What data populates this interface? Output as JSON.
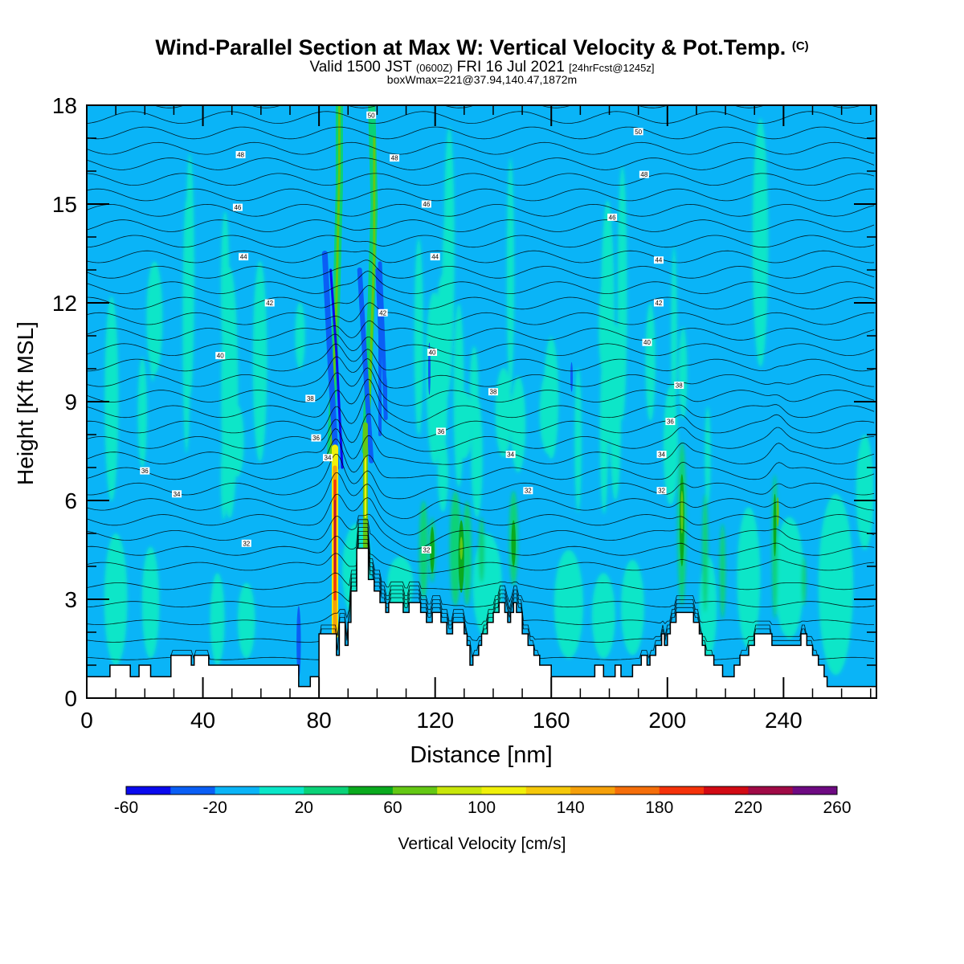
{
  "header": {
    "title": "Wind-Parallel Section at Max W: Vertical Velocity & Pot.Temp.",
    "copyright": "(C)",
    "valid_prefix": "Valid 1500 JST",
    "valid_utc": "(0600Z)",
    "valid_date": "FRI 16 Jul 2021",
    "forecast": "[24hrFcst@1245z]",
    "boxwmax": "boxWmax=221@37.94,140.47,1872m"
  },
  "chart_data": {
    "type": "heatmap",
    "xlabel": "Distance [nm]",
    "ylabel": "Height [Kft MSL]",
    "xlim": [
      0,
      272
    ],
    "ylim": [
      0,
      18
    ],
    "x_ticks": [
      0,
      40,
      80,
      120,
      160,
      200,
      240
    ],
    "y_ticks": [
      0,
      3,
      6,
      9,
      12,
      15,
      18
    ],
    "colorbar": {
      "label": "Vertical Velocity [cm/s]",
      "range": [
        -60,
        260
      ],
      "step": 20,
      "tick_labels": [
        "-60",
        "-20",
        "20",
        "60",
        "100",
        "140",
        "180",
        "220",
        "260"
      ],
      "colors": [
        "#0a0aee",
        "#0a5ef5",
        "#0ab4f7",
        "#0ae6c8",
        "#0ad278",
        "#0aaa1e",
        "#64c814",
        "#c8e60a",
        "#f0f00a",
        "#f5c80a",
        "#f5a00a",
        "#f56e0a",
        "#f5320a",
        "#d20a14",
        "#a00a46",
        "#6e0a82"
      ]
    },
    "background_color": "#0ab4f7",
    "max_vertical_velocity_cms": 221,
    "isentrope_labels": [
      {
        "x": 20,
        "y": 6.9,
        "label": "36"
      },
      {
        "x": 31,
        "y": 6.2,
        "label": "34"
      },
      {
        "x": 55,
        "y": 4.7,
        "label": "32"
      },
      {
        "x": 46,
        "y": 10.4,
        "label": "40"
      },
      {
        "x": 63,
        "y": 12.0,
        "label": "42"
      },
      {
        "x": 54,
        "y": 13.4,
        "label": "44"
      },
      {
        "x": 52,
        "y": 14.9,
        "label": "46"
      },
      {
        "x": 53,
        "y": 16.5,
        "label": "48"
      },
      {
        "x": 77,
        "y": 9.1,
        "label": "38"
      },
      {
        "x": 79,
        "y": 7.9,
        "label": "36"
      },
      {
        "x": 83,
        "y": 7.3,
        "label": "34"
      },
      {
        "x": 98,
        "y": 17.7,
        "label": "50"
      },
      {
        "x": 106,
        "y": 16.4,
        "label": "48"
      },
      {
        "x": 117,
        "y": 15.0,
        "label": "46"
      },
      {
        "x": 120,
        "y": 13.4,
        "label": "44"
      },
      {
        "x": 102,
        "y": 11.7,
        "label": "42"
      },
      {
        "x": 119,
        "y": 10.5,
        "label": "40"
      },
      {
        "x": 140,
        "y": 9.3,
        "label": "38"
      },
      {
        "x": 122,
        "y": 8.1,
        "label": "36"
      },
      {
        "x": 146,
        "y": 7.4,
        "label": "34"
      },
      {
        "x": 152,
        "y": 6.3,
        "label": "32"
      },
      {
        "x": 117,
        "y": 4.5,
        "label": "32"
      },
      {
        "x": 190,
        "y": 17.2,
        "label": "50"
      },
      {
        "x": 192,
        "y": 15.9,
        "label": "48"
      },
      {
        "x": 181,
        "y": 14.6,
        "label": "46"
      },
      {
        "x": 197,
        "y": 13.3,
        "label": "44"
      },
      {
        "x": 197,
        "y": 12.0,
        "label": "42"
      },
      {
        "x": 193,
        "y": 10.8,
        "label": "40"
      },
      {
        "x": 204,
        "y": 9.5,
        "label": "38"
      },
      {
        "x": 201,
        "y": 8.4,
        "label": "36"
      },
      {
        "x": 198,
        "y": 7.4,
        "label": "34"
      },
      {
        "x": 198,
        "y": 6.3,
        "label": "32"
      }
    ],
    "terrain": [
      [
        0,
        0.65
      ],
      [
        8,
        0.65
      ],
      [
        8,
        1.0
      ],
      [
        15,
        1.0
      ],
      [
        15,
        0.65
      ],
      [
        18,
        0.65
      ],
      [
        18,
        1.0
      ],
      [
        22,
        1.0
      ],
      [
        22,
        0.65
      ],
      [
        29,
        0.65
      ],
      [
        29,
        1.3
      ],
      [
        36,
        1.3
      ],
      [
        36,
        1.0
      ],
      [
        37,
        1.0
      ],
      [
        37,
        1.3
      ],
      [
        42,
        1.3
      ],
      [
        42,
        1.0
      ],
      [
        73,
        1.0
      ],
      [
        73,
        0.35
      ],
      [
        77,
        0.35
      ],
      [
        77,
        0.65
      ],
      [
        80,
        0.65
      ],
      [
        80,
        1.95
      ],
      [
        86,
        1.95
      ],
      [
        86,
        1.3
      ],
      [
        87,
        1.3
      ],
      [
        87,
        2.3
      ],
      [
        89,
        2.3
      ],
      [
        89,
        1.6
      ],
      [
        90,
        1.6
      ],
      [
        90,
        2.3
      ],
      [
        91,
        2.3
      ],
      [
        91,
        3.25
      ],
      [
        93,
        3.25
      ],
      [
        93,
        4.55
      ],
      [
        97,
        4.55
      ],
      [
        97,
        3.6
      ],
      [
        99,
        3.6
      ],
      [
        99,
        3.25
      ],
      [
        101,
        3.25
      ],
      [
        101,
        2.9
      ],
      [
        103,
        2.9
      ],
      [
        103,
        2.6
      ],
      [
        104,
        2.6
      ],
      [
        104,
        2.9
      ],
      [
        109,
        2.9
      ],
      [
        109,
        2.6
      ],
      [
        111,
        2.6
      ],
      [
        111,
        2.9
      ],
      [
        115,
        2.9
      ],
      [
        115,
        2.6
      ],
      [
        117,
        2.6
      ],
      [
        117,
        2.3
      ],
      [
        119,
        2.3
      ],
      [
        119,
        2.6
      ],
      [
        122,
        2.6
      ],
      [
        122,
        2.3
      ],
      [
        124,
        2.3
      ],
      [
        124,
        1.95
      ],
      [
        126,
        1.95
      ],
      [
        126,
        2.3
      ],
      [
        130,
        2.3
      ],
      [
        130,
        1.95
      ],
      [
        131,
        1.95
      ],
      [
        131,
        1.6
      ],
      [
        132,
        1.6
      ],
      [
        132,
        1.0
      ],
      [
        133,
        1.0
      ],
      [
        133,
        1.3
      ],
      [
        135,
        1.3
      ],
      [
        135,
        1.6
      ],
      [
        136,
        1.6
      ],
      [
        136,
        1.95
      ],
      [
        138,
        1.95
      ],
      [
        138,
        2.3
      ],
      [
        140,
        2.3
      ],
      [
        140,
        2.6
      ],
      [
        142,
        2.6
      ],
      [
        142,
        2.9
      ],
      [
        144,
        2.9
      ],
      [
        144,
        2.6
      ],
      [
        145,
        2.6
      ],
      [
        145,
        2.3
      ],
      [
        146,
        2.3
      ],
      [
        146,
        2.6
      ],
      [
        147,
        2.6
      ],
      [
        147,
        2.9
      ],
      [
        148,
        2.9
      ],
      [
        148,
        2.6
      ],
      [
        150,
        2.6
      ],
      [
        150,
        1.95
      ],
      [
        152,
        1.95
      ],
      [
        152,
        1.6
      ],
      [
        154,
        1.6
      ],
      [
        154,
        1.3
      ],
      [
        156,
        1.3
      ],
      [
        156,
        1.0
      ],
      [
        160,
        1.0
      ],
      [
        160,
        0.65
      ],
      [
        175,
        0.65
      ],
      [
        175,
        1.0
      ],
      [
        178,
        1.0
      ],
      [
        178,
        0.65
      ],
      [
        182,
        0.65
      ],
      [
        182,
        1.0
      ],
      [
        184,
        1.0
      ],
      [
        184,
        0.65
      ],
      [
        188,
        0.65
      ],
      [
        188,
        1.0
      ],
      [
        191,
        1.0
      ],
      [
        191,
        1.3
      ],
      [
        193,
        1.3
      ],
      [
        193,
        1.0
      ],
      [
        194,
        1.0
      ],
      [
        194,
        1.3
      ],
      [
        196,
        1.3
      ],
      [
        196,
        1.6
      ],
      [
        198,
        1.6
      ],
      [
        198,
        1.95
      ],
      [
        199,
        1.95
      ],
      [
        199,
        1.6
      ],
      [
        200,
        1.6
      ],
      [
        200,
        1.95
      ],
      [
        201,
        1.95
      ],
      [
        201,
        2.3
      ],
      [
        203,
        2.3
      ],
      [
        203,
        2.6
      ],
      [
        209,
        2.6
      ],
      [
        209,
        2.3
      ],
      [
        211,
        2.3
      ],
      [
        211,
        1.95
      ],
      [
        212,
        1.95
      ],
      [
        212,
        1.6
      ],
      [
        213,
        1.6
      ],
      [
        213,
        1.3
      ],
      [
        216,
        1.3
      ],
      [
        216,
        1.0
      ],
      [
        219,
        1.0
      ],
      [
        219,
        0.65
      ],
      [
        223,
        0.65
      ],
      [
        223,
        1.0
      ],
      [
        225,
        1.0
      ],
      [
        225,
        1.3
      ],
      [
        228,
        1.3
      ],
      [
        228,
        1.6
      ],
      [
        230,
        1.6
      ],
      [
        230,
        1.95
      ],
      [
        236,
        1.95
      ],
      [
        236,
        1.6
      ],
      [
        246,
        1.6
      ],
      [
        246,
        1.95
      ],
      [
        248,
        1.95
      ],
      [
        248,
        1.6
      ],
      [
        250,
        1.6
      ],
      [
        250,
        1.3
      ],
      [
        252,
        1.3
      ],
      [
        252,
        1.0
      ],
      [
        254,
        1.0
      ],
      [
        254,
        0.65
      ],
      [
        255,
        0.65
      ],
      [
        255,
        0.35
      ],
      [
        272,
        0.35
      ]
    ]
  }
}
